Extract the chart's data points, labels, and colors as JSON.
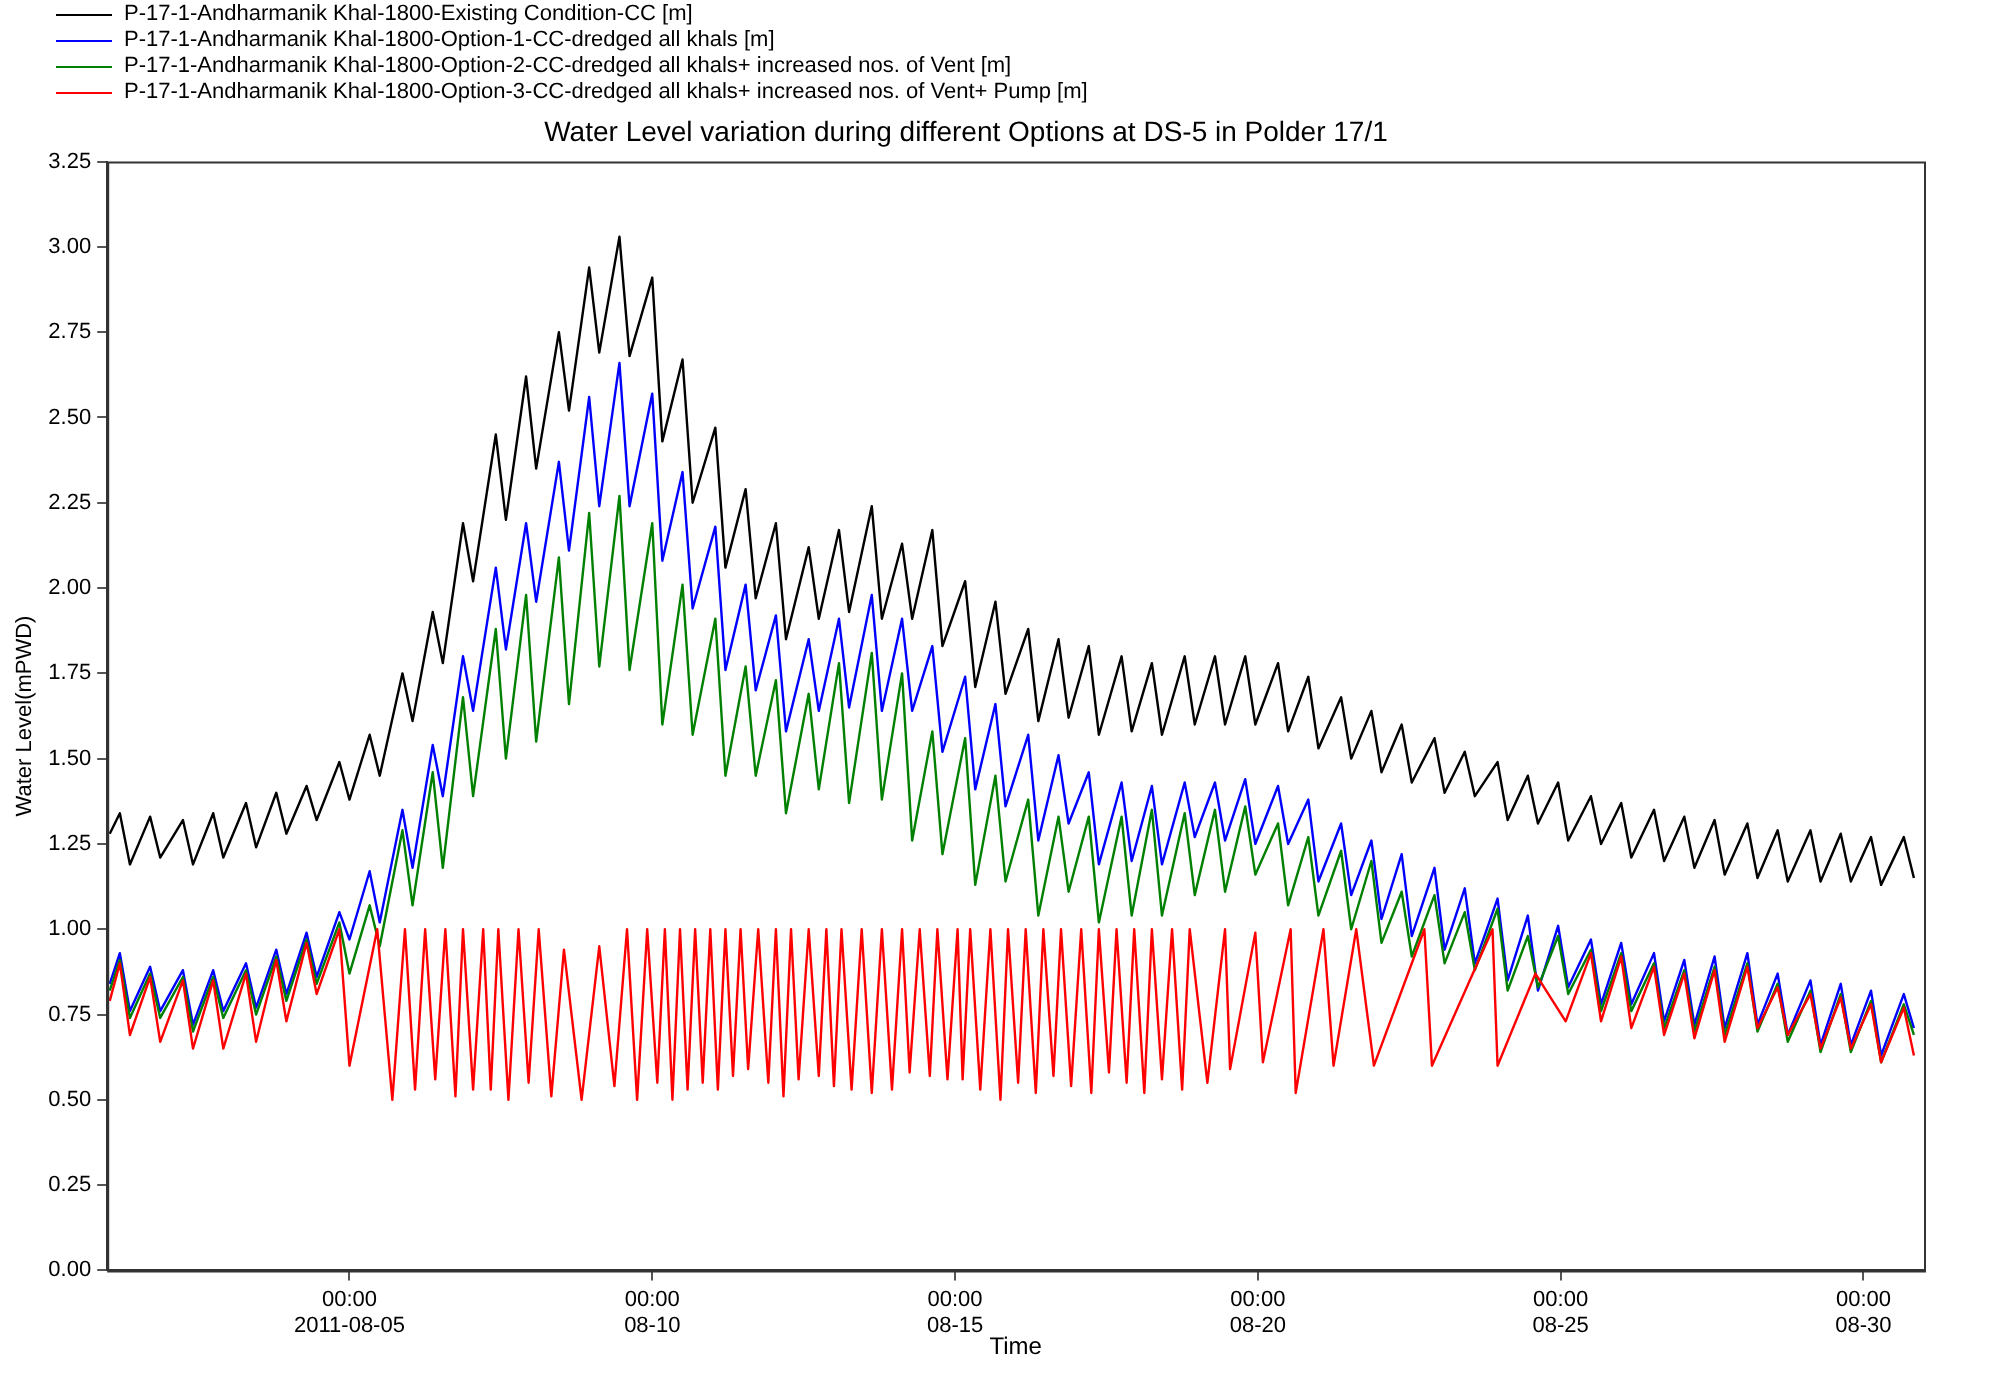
{
  "chart_data": {
    "type": "line",
    "title": "Water Level variation during different Options at DS-5 in Polder 17/1",
    "xlabel": "Time",
    "ylabel": "Water Level(mPWD)",
    "legend": "top left",
    "xlim": [
      "2011-08-01",
      "2011-08-31"
    ],
    "xticks": [
      {
        "value": "2011-08-05",
        "label": "00:00\n2011-08-05"
      },
      {
        "value": "2011-08-10",
        "label": "00:00\n08-10"
      },
      {
        "value": "2011-08-15",
        "label": "00:00\n08-15"
      },
      {
        "value": "2011-08-20",
        "label": "00:00\n08-20"
      },
      {
        "value": "2011-08-25",
        "label": "00:00\n08-25"
      },
      {
        "value": "2011-08-30",
        "label": "00:00\n08-30"
      }
    ],
    "ylim": [
      0,
      3.25
    ],
    "yticks": [
      {
        "value": 0,
        "label": "0.00"
      },
      {
        "value": 0.25,
        "label": "0.25"
      },
      {
        "value": 0.5,
        "label": "0.50"
      },
      {
        "value": 0.75,
        "label": "0.75"
      },
      {
        "value": 1,
        "label": "1.00"
      },
      {
        "value": 1.25,
        "label": "1.25"
      },
      {
        "value": 1.5,
        "label": "1.50"
      },
      {
        "value": 1.75,
        "label": "1.75"
      },
      {
        "value": 2,
        "label": "2.00"
      },
      {
        "value": 2.25,
        "label": "2.25"
      },
      {
        "value": 2.5,
        "label": "2.50"
      },
      {
        "value": 2.75,
        "label": "2.75"
      },
      {
        "value": 3,
        "label": "3.00"
      },
      {
        "value": 3.25,
        "label": "3.25"
      }
    ],
    "x": [
      "2011-08-01T01:00",
      "2011-08-01T05:00",
      "2011-08-01T09:00",
      "2011-08-01T17:00",
      "2011-08-01T21:00",
      "2011-08-02T06:00",
      "2011-08-02T10:00",
      "2011-08-02T18:00",
      "2011-08-02T22:00",
      "2011-08-03T07:00",
      "2011-08-03T11:00",
      "2011-08-03T19:00",
      "2011-08-03T23:00",
      "2011-08-04T07:00",
      "2011-08-04T11:00",
      "2011-08-04T20:00",
      "2011-08-05T00:00",
      "2011-08-05T08:00",
      "2011-08-05T12:00",
      "2011-08-05T21:00",
      "2011-08-06T01:00",
      "2011-08-06T09:00",
      "2011-08-06T13:00",
      "2011-08-06T21:00",
      "2011-08-07T01:00",
      "2011-08-07T10:00",
      "2011-08-07T14:00",
      "2011-08-07T22:00",
      "2011-08-08T02:00",
      "2011-08-08T11:00",
      "2011-08-08T15:00",
      "2011-08-08T23:00",
      "2011-08-09T03:00",
      "2011-08-09T11:00",
      "2011-08-09T15:00",
      "2011-08-10T00:00",
      "2011-08-10T04:00",
      "2011-08-10T12:00",
      "2011-08-10T16:00",
      "2011-08-11T01:00",
      "2011-08-11T05:00",
      "2011-08-11T13:00",
      "2011-08-11T17:00",
      "2011-08-12T01:00",
      "2011-08-12T05:00",
      "2011-08-12T14:00",
      "2011-08-12T18:00",
      "2011-08-13T02:00",
      "2011-08-13T06:00",
      "2011-08-13T15:00",
      "2011-08-13T19:00",
      "2011-08-14T03:00",
      "2011-08-14T07:00",
      "2011-08-14T15:00",
      "2011-08-14T19:00",
      "2011-08-15T04:00",
      "2011-08-15T08:00",
      "2011-08-15T16:00",
      "2011-08-15T20:00",
      "2011-08-16T05:00",
      "2011-08-16T09:00",
      "2011-08-16T17:00",
      "2011-08-16T21:00",
      "2011-08-17T05:00",
      "2011-08-17T09:00",
      "2011-08-17T18:00",
      "2011-08-17T22:00",
      "2011-08-18T06:00",
      "2011-08-18T10:00",
      "2011-08-18T19:00",
      "2011-08-18T23:00",
      "2011-08-19T07:00",
      "2011-08-19T11:00",
      "2011-08-19T19:00",
      "2011-08-19T23:00",
      "2011-08-20T08:00",
      "2011-08-20T12:00",
      "2011-08-20T20:00",
      "2011-08-21T00:00",
      "2011-08-21T09:00",
      "2011-08-21T13:00",
      "2011-08-21T21:00",
      "2011-08-22T01:00",
      "2011-08-22T09:00",
      "2011-08-22T13:00",
      "2011-08-22T22:00",
      "2011-08-23T02:00",
      "2011-08-23T10:00",
      "2011-08-23T14:00",
      "2011-08-23T23:00",
      "2011-08-24T03:00",
      "2011-08-24T11:00",
      "2011-08-24T15:00",
      "2011-08-24T23:00",
      "2011-08-25T03:00",
      "2011-08-25T12:00",
      "2011-08-25T16:00",
      "2011-08-26T00:00",
      "2011-08-26T04:00",
      "2011-08-26T13:00",
      "2011-08-26T17:00",
      "2011-08-27T01:00",
      "2011-08-27T05:00",
      "2011-08-27T13:00",
      "2011-08-27T17:00",
      "2011-08-28T02:00",
      "2011-08-28T06:00",
      "2011-08-28T14:00",
      "2011-08-28T18:00",
      "2011-08-29T03:00",
      "2011-08-29T07:00",
      "2011-08-29T15:00",
      "2011-08-29T19:00",
      "2011-08-30T03:00",
      "2011-08-30T07:00",
      "2011-08-30T16:00",
      "2011-08-30T20:00"
    ],
    "series": [
      {
        "name": "P-17-1-Andharmanik Khal-1800-Existing Condition-CC [m]",
        "color": "#000000",
        "values": [
          1.28,
          1.34,
          1.19,
          1.33,
          1.21,
          1.32,
          1.19,
          1.34,
          1.21,
          1.37,
          1.24,
          1.4,
          1.28,
          1.42,
          1.32,
          1.49,
          1.38,
          1.57,
          1.45,
          1.75,
          1.61,
          1.93,
          1.78,
          2.19,
          2.02,
          2.45,
          2.2,
          2.62,
          2.35,
          2.75,
          2.52,
          2.94,
          2.69,
          3.03,
          2.68,
          2.91,
          2.43,
          2.67,
          2.25,
          2.47,
          2.06,
          2.29,
          1.97,
          2.19,
          1.85,
          2.12,
          1.91,
          2.17,
          1.93,
          2.24,
          1.91,
          2.13,
          1.91,
          2.17,
          1.83,
          2.02,
          1.71,
          1.96,
          1.69,
          1.88,
          1.61,
          1.85,
          1.62,
          1.83,
          1.57,
          1.8,
          1.58,
          1.78,
          1.57,
          1.8,
          1.6,
          1.8,
          1.6,
          1.8,
          1.6,
          1.78,
          1.58,
          1.74,
          1.53,
          1.68,
          1.5,
          1.64,
          1.46,
          1.6,
          1.43,
          1.56,
          1.4,
          1.52,
          1.39,
          1.49,
          1.32,
          1.45,
          1.31,
          1.43,
          1.26,
          1.39,
          1.25,
          1.37,
          1.21,
          1.35,
          1.2,
          1.33,
          1.18,
          1.32,
          1.16,
          1.31,
          1.15,
          1.29,
          1.14,
          1.29,
          1.14,
          1.28,
          1.14,
          1.27,
          1.13,
          1.27,
          1.15
        ]
      },
      {
        "name": "P-17-1-Andharmanik Khal-1800-Option-1-CC-dredged all khals [m]",
        "color": "#0000ff",
        "values": [
          0.84,
          0.93,
          0.76,
          0.89,
          0.76,
          0.88,
          0.72,
          0.88,
          0.76,
          0.9,
          0.77,
          0.94,
          0.81,
          0.99,
          0.86,
          1.05,
          0.97,
          1.17,
          1.02,
          1.35,
          1.18,
          1.54,
          1.39,
          1.8,
          1.64,
          2.06,
          1.82,
          2.19,
          1.96,
          2.37,
          2.11,
          2.56,
          2.24,
          2.66,
          2.24,
          2.57,
          2.08,
          2.34,
          1.94,
          2.18,
          1.76,
          2.01,
          1.7,
          1.92,
          1.58,
          1.85,
          1.64,
          1.91,
          1.65,
          1.98,
          1.64,
          1.91,
          1.64,
          1.83,
          1.52,
          1.74,
          1.41,
          1.66,
          1.36,
          1.57,
          1.26,
          1.51,
          1.31,
          1.46,
          1.19,
          1.43,
          1.2,
          1.42,
          1.19,
          1.43,
          1.27,
          1.43,
          1.26,
          1.44,
          1.25,
          1.42,
          1.25,
          1.38,
          1.14,
          1.31,
          1.1,
          1.26,
          1.03,
          1.22,
          0.98,
          1.18,
          0.94,
          1.12,
          0.9,
          1.09,
          0.85,
          1.04,
          0.82,
          1.01,
          0.83,
          0.97,
          0.78,
          0.96,
          0.78,
          0.93,
          0.73,
          0.91,
          0.72,
          0.92,
          0.71,
          0.93,
          0.72,
          0.87,
          0.69,
          0.85,
          0.66,
          0.84,
          0.66,
          0.82,
          0.63,
          0.81,
          0.71
        ]
      },
      {
        "name": "P-17-1-Andharmanik Khal-1800-Option-2-CC-dredged all khals+ increased nos. of Vent [m]",
        "color": "#008000",
        "values": [
          0.82,
          0.91,
          0.74,
          0.87,
          0.74,
          0.86,
          0.7,
          0.86,
          0.74,
          0.88,
          0.75,
          0.92,
          0.79,
          0.97,
          0.84,
          1.02,
          0.87,
          1.07,
          0.95,
          1.29,
          1.07,
          1.46,
          1.18,
          1.68,
          1.39,
          1.88,
          1.5,
          1.98,
          1.55,
          2.09,
          1.66,
          2.22,
          1.77,
          2.27,
          1.76,
          2.19,
          1.6,
          2.01,
          1.57,
          1.91,
          1.45,
          1.77,
          1.45,
          1.73,
          1.34,
          1.69,
          1.41,
          1.78,
          1.37,
          1.81,
          1.38,
          1.75,
          1.26,
          1.58,
          1.22,
          1.56,
          1.13,
          1.45,
          1.14,
          1.38,
          1.04,
          1.33,
          1.11,
          1.33,
          1.02,
          1.33,
          1.04,
          1.35,
          1.04,
          1.34,
          1.1,
          1.35,
          1.11,
          1.36,
          1.16,
          1.31,
          1.07,
          1.27,
          1.04,
          1.23,
          1.0,
          1.2,
          0.96,
          1.11,
          0.92,
          1.1,
          0.9,
          1.05,
          0.88,
          1.06,
          0.82,
          0.98,
          0.83,
          0.98,
          0.81,
          0.94,
          0.76,
          0.93,
          0.76,
          0.9,
          0.71,
          0.88,
          0.7,
          0.89,
          0.69,
          0.9,
          0.7,
          0.84,
          0.67,
          0.82,
          0.64,
          0.81,
          0.64,
          0.79,
          0.61,
          0.78,
          0.69
        ]
      },
      {
        "name": "P-17-1-Andharmanik Khal-1800-Option-3-CC-dredged all khals+ increased nos. of Vent+ Pump [m]",
        "color": "#ff0000",
        "x": [
          "2011-08-01T01:00",
          "2011-08-01T05:00",
          "2011-08-01T09:00",
          "2011-08-01T17:00",
          "2011-08-01T21:00",
          "2011-08-02T06:00",
          "2011-08-02T10:00",
          "2011-08-02T18:00",
          "2011-08-02T22:00",
          "2011-08-03T07:00",
          "2011-08-03T11:00",
          "2011-08-03T19:00",
          "2011-08-03T23:00",
          "2011-08-04T07:00",
          "2011-08-04T11:00",
          "2011-08-04T20:00",
          "2011-08-05T00:00",
          "2011-08-05T11:00",
          "2011-08-05T17:00",
          "2011-08-05T22:00",
          "2011-08-06T02:00",
          "2011-08-06T06:00",
          "2011-08-06T10:00",
          "2011-08-06T14:00",
          "2011-08-06T18:00",
          "2011-08-06T21:00",
          "2011-08-07T01:00",
          "2011-08-07T05:00",
          "2011-08-07T08:00",
          "2011-08-07T11:00",
          "2011-08-07T15:00",
          "2011-08-07T19:00",
          "2011-08-07T23:00",
          "2011-08-08T03:00",
          "2011-08-08T08:00",
          "2011-08-08T13:00",
          "2011-08-08T20:00",
          "2011-08-09T03:00",
          "2011-08-09T09:00",
          "2011-08-09T14:00",
          "2011-08-09T18:00",
          "2011-08-09T22:00",
          "2011-08-10T02:00",
          "2011-08-10T05:00",
          "2011-08-10T08:00",
          "2011-08-10T11:00",
          "2011-08-10T14:00",
          "2011-08-10T17:00",
          "2011-08-10T20:00",
          "2011-08-10T23:00",
          "2011-08-11T02:00",
          "2011-08-11T05:00",
          "2011-08-11T08:00",
          "2011-08-11T11:00",
          "2011-08-11T14:00",
          "2011-08-11T18:00",
          "2011-08-11T22:00",
          "2011-08-12T01:00",
          "2011-08-12T04:00",
          "2011-08-12T07:00",
          "2011-08-12T10:00",
          "2011-08-12T14:00",
          "2011-08-12T18:00",
          "2011-08-12T21:00",
          "2011-08-13T00:00",
          "2011-08-13T03:00",
          "2011-08-13T07:00",
          "2011-08-13T11:00",
          "2011-08-13T15:00",
          "2011-08-13T19:00",
          "2011-08-13T23:00",
          "2011-08-14T03:00",
          "2011-08-14T06:00",
          "2011-08-14T10:00",
          "2011-08-14T14:00",
          "2011-08-14T17:00",
          "2011-08-14T21:00",
          "2011-08-15T01:00",
          "2011-08-15T03:00",
          "2011-08-15T06:00",
          "2011-08-15T10:00",
          "2011-08-15T14:00",
          "2011-08-15T18:00",
          "2011-08-15T21:00",
          "2011-08-16T01:00",
          "2011-08-16T04:00",
          "2011-08-16T08:00",
          "2011-08-16T11:00",
          "2011-08-16T15:00",
          "2011-08-16T18:00",
          "2011-08-16T22:00",
          "2011-08-17T02:00",
          "2011-08-17T06:00",
          "2011-08-17T09:00",
          "2011-08-17T13:00",
          "2011-08-17T16:00",
          "2011-08-17T20:00",
          "2011-08-17T23:00",
          "2011-08-18T03:00",
          "2011-08-18T06:00",
          "2011-08-18T10:00",
          "2011-08-18T14:00",
          "2011-08-18T18:00",
          "2011-08-18T21:00",
          "2011-08-19T04:00",
          "2011-08-19T11:00",
          "2011-08-19T13:00",
          "2011-08-19T23:00",
          "2011-08-20T02:00",
          "2011-08-20T13:00",
          "2011-08-20T15:00",
          "2011-08-21T02:00",
          "2011-08-21T06:00",
          "2011-08-21T15:00",
          "2011-08-21T22:00",
          "2011-08-22T18:00",
          "2011-08-22T21:00",
          "2011-08-23T21:00",
          "2011-08-23T23:00",
          "2011-08-24T14:00",
          "2011-08-25T02:00",
          "2011-08-25T12:00",
          "2011-08-25T16:00",
          "2011-08-26T00:00",
          "2011-08-26T04:00",
          "2011-08-26T13:00",
          "2011-08-26T17:00",
          "2011-08-27T01:00",
          "2011-08-27T05:00",
          "2011-08-27T13:00",
          "2011-08-27T17:00",
          "2011-08-28T02:00",
          "2011-08-28T06:00",
          "2011-08-28T14:00",
          "2011-08-28T18:00",
          "2011-08-29T03:00",
          "2011-08-29T07:00",
          "2011-08-29T15:00",
          "2011-08-29T19:00",
          "2011-08-30T03:00",
          "2011-08-30T07:00",
          "2011-08-30T16:00",
          "2011-08-30T20:00"
        ],
        "values": [
          0.79,
          0.9,
          0.69,
          0.86,
          0.67,
          0.85,
          0.65,
          0.85,
          0.65,
          0.87,
          0.67,
          0.91,
          0.73,
          0.96,
          0.81,
          1.0,
          0.6,
          1.0,
          0.5,
          1.0,
          0.53,
          1.0,
          0.56,
          1.0,
          0.51,
          1.0,
          0.53,
          1.0,
          0.53,
          1.0,
          0.5,
          1.0,
          0.55,
          1.0,
          0.51,
          0.94,
          0.5,
          0.95,
          0.54,
          1.0,
          0.5,
          1.0,
          0.55,
          1.0,
          0.5,
          1.0,
          0.53,
          1.0,
          0.55,
          1.0,
          0.53,
          1.0,
          0.57,
          1.0,
          0.59,
          1.0,
          0.55,
          1.0,
          0.51,
          1.0,
          0.56,
          1.0,
          0.57,
          1.0,
          0.54,
          1.0,
          0.53,
          1.0,
          0.52,
          1.0,
          0.53,
          1.0,
          0.58,
          1.0,
          0.57,
          1.0,
          0.56,
          1.0,
          0.56,
          1.0,
          0.53,
          1.0,
          0.5,
          1.0,
          0.55,
          1.0,
          0.52,
          1.0,
          0.57,
          1.0,
          0.54,
          1.0,
          0.52,
          1.0,
          0.58,
          1.0,
          0.55,
          1.0,
          0.52,
          1.0,
          0.56,
          1.0,
          0.53,
          1.0,
          0.55,
          1.0,
          0.59,
          0.99,
          0.61,
          1.0,
          0.52,
          1.0,
          0.6,
          1.0,
          0.6,
          1.0,
          0.6,
          1.0,
          0.6,
          0.87,
          0.73,
          0.93,
          0.73,
          0.92,
          0.71,
          0.89,
          0.69,
          0.87,
          0.68,
          0.88,
          0.67,
          0.89,
          0.71,
          0.83,
          0.69,
          0.81,
          0.65,
          0.8,
          0.65,
          0.78,
          0.61,
          0.77,
          0.63
        ]
      }
    ]
  }
}
